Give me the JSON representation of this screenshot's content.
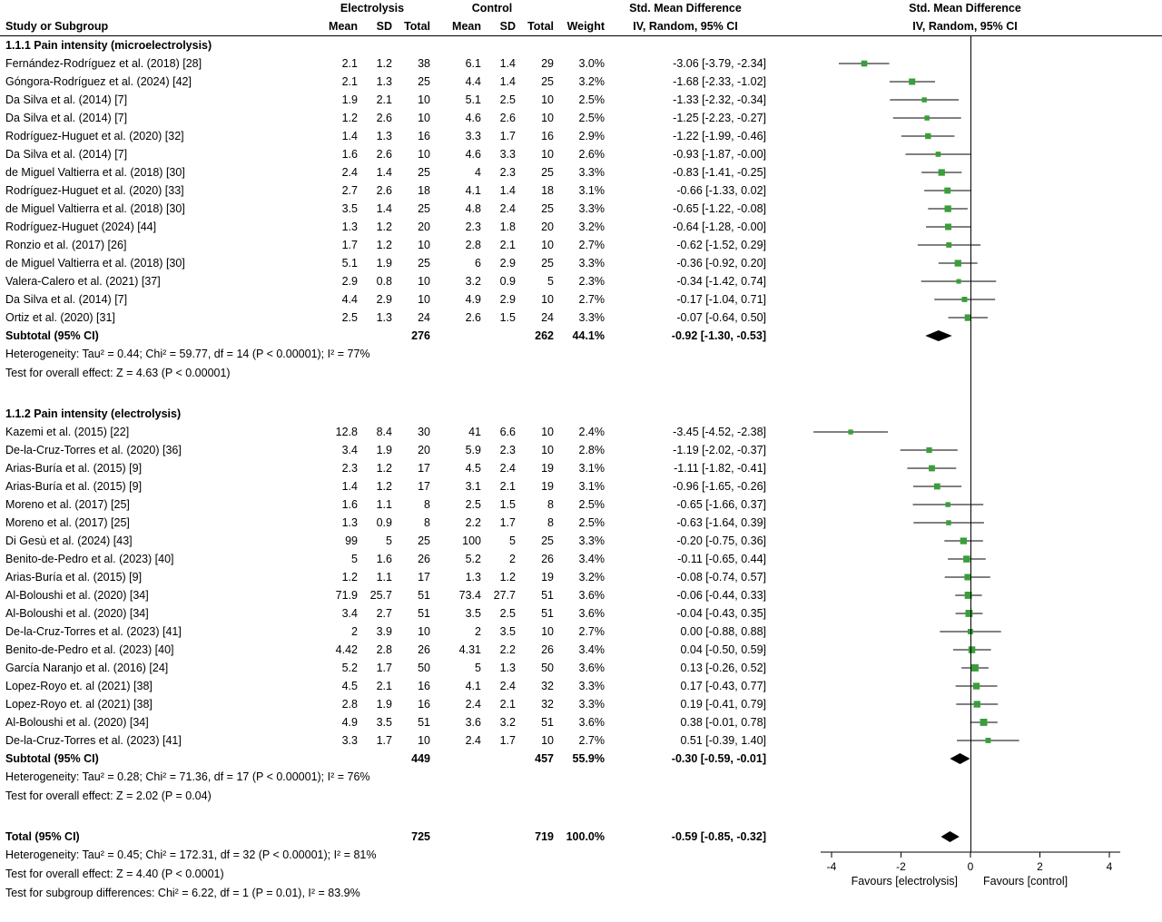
{
  "colors": {
    "marker": "#3a9e3a",
    "diamond": "#000000",
    "line": "#000000"
  },
  "chart_data": {
    "type": "forest",
    "labels": {
      "study_col": "Study or Subgroup",
      "group1": "Electrolysis",
      "group2": "Control",
      "mean": "Mean",
      "sd": "SD",
      "total": "Total",
      "weight": "Weight",
      "smd_title": "Std. Mean Difference",
      "smd_sub": "IV, Random, 95% CI"
    },
    "axis": {
      "ticks": [
        -4,
        -2,
        0,
        2,
        4
      ],
      "favours_left": "Favours [electrolysis]",
      "favours_right": "Favours [control]"
    },
    "sections": [
      {
        "label": "1.1.1 Pain intensity (microelectrolysis)",
        "studies": [
          {
            "name": "Fernández-Rodríguez et al. (2018) [28]",
            "e_mean": "2.1",
            "e_sd": "1.2",
            "e_total": "38",
            "c_mean": "6.1",
            "c_sd": "1.4",
            "c_total": "29",
            "weight": "3.0%",
            "est": -3.06,
            "lo": -3.79,
            "hi": -2.34,
            "ci": "-3.06 [-3.79, -2.34]"
          },
          {
            "name": "Góngora-Rodríguez et al. (2024) [42]",
            "e_mean": "2.1",
            "e_sd": "1.3",
            "e_total": "25",
            "c_mean": "4.4",
            "c_sd": "1.4",
            "c_total": "25",
            "weight": "3.2%",
            "est": -1.68,
            "lo": -2.33,
            "hi": -1.02,
            "ci": "-1.68 [-2.33, -1.02]"
          },
          {
            "name": "Da Silva et al. (2014) [7]",
            "e_mean": "1.9",
            "e_sd": "2.1",
            "e_total": "10",
            "c_mean": "5.1",
            "c_sd": "2.5",
            "c_total": "10",
            "weight": "2.5%",
            "est": -1.33,
            "lo": -2.32,
            "hi": -0.34,
            "ci": "-1.33 [-2.32, -0.34]"
          },
          {
            "name": "Da Silva et al. (2014) [7]",
            "e_mean": "1.2",
            "e_sd": "2.6",
            "e_total": "10",
            "c_mean": "4.6",
            "c_sd": "2.6",
            "c_total": "10",
            "weight": "2.5%",
            "est": -1.25,
            "lo": -2.23,
            "hi": -0.27,
            "ci": "-1.25 [-2.23, -0.27]"
          },
          {
            "name": "Rodríguez-Huguet et al. (2020) [32]",
            "e_mean": "1.4",
            "e_sd": "1.3",
            "e_total": "16",
            "c_mean": "3.3",
            "c_sd": "1.7",
            "c_total": "16",
            "weight": "2.9%",
            "est": -1.22,
            "lo": -1.99,
            "hi": -0.46,
            "ci": "-1.22 [-1.99, -0.46]"
          },
          {
            "name": "Da Silva et al. (2014) [7]",
            "e_mean": "1.6",
            "e_sd": "2.6",
            "e_total": "10",
            "c_mean": "4.6",
            "c_sd": "3.3",
            "c_total": "10",
            "weight": "2.6%",
            "est": -0.93,
            "lo": -1.87,
            "hi": 0,
            "ci": "-0.93 [-1.87, -0.00]"
          },
          {
            "name": "de Miguel Valtierra et al. (2018) [30]",
            "e_mean": "2.4",
            "e_sd": "1.4",
            "e_total": "25",
            "c_mean": "4",
            "c_sd": "2.3",
            "c_total": "25",
            "weight": "3.3%",
            "est": -0.83,
            "lo": -1.41,
            "hi": -0.25,
            "ci": "-0.83 [-1.41, -0.25]"
          },
          {
            "name": "Rodríguez-Huguet et al. (2020) [33]",
            "e_mean": "2.7",
            "e_sd": "2.6",
            "e_total": "18",
            "c_mean": "4.1",
            "c_sd": "1.4",
            "c_total": "18",
            "weight": "3.1%",
            "est": -0.66,
            "lo": -1.33,
            "hi": 0.02,
            "ci": "-0.66 [-1.33, 0.02]"
          },
          {
            "name": "de Miguel Valtierra et al. (2018) [30]",
            "e_mean": "3.5",
            "e_sd": "1.4",
            "e_total": "25",
            "c_mean": "4.8",
            "c_sd": "2.4",
            "c_total": "25",
            "weight": "3.3%",
            "est": -0.65,
            "lo": -1.22,
            "hi": -0.08,
            "ci": "-0.65 [-1.22, -0.08]"
          },
          {
            "name": "Rodríguez-Huguet (2024) [44]",
            "e_mean": "1.3",
            "e_sd": "1.2",
            "e_total": "20",
            "c_mean": "2.3",
            "c_sd": "1.8",
            "c_total": "20",
            "weight": "3.2%",
            "est": -0.64,
            "lo": -1.28,
            "hi": 0,
            "ci": "-0.64 [-1.28, -0.00]"
          },
          {
            "name": "Ronzio et al. (2017) [26]",
            "e_mean": "1.7",
            "e_sd": "1.2",
            "e_total": "10",
            "c_mean": "2.8",
            "c_sd": "2.1",
            "c_total": "10",
            "weight": "2.7%",
            "est": -0.62,
            "lo": -1.52,
            "hi": 0.29,
            "ci": "-0.62 [-1.52, 0.29]"
          },
          {
            "name": "de Miguel Valtierra et al. (2018) [30]",
            "e_mean": "5.1",
            "e_sd": "1.9",
            "e_total": "25",
            "c_mean": "6",
            "c_sd": "2.9",
            "c_total": "25",
            "weight": "3.3%",
            "est": -0.36,
            "lo": -0.92,
            "hi": 0.2,
            "ci": "-0.36 [-0.92, 0.20]"
          },
          {
            "name": "Valera-Calero et al. (2021) [37]",
            "e_mean": "2.9",
            "e_sd": "0.8",
            "e_total": "10",
            "c_mean": "3.2",
            "c_sd": "0.9",
            "c_total": "5",
            "weight": "2.3%",
            "est": -0.34,
            "lo": -1.42,
            "hi": 0.74,
            "ci": "-0.34 [-1.42, 0.74]"
          },
          {
            "name": "Da Silva et al. (2014) [7]",
            "e_mean": "4.4",
            "e_sd": "2.9",
            "e_total": "10",
            "c_mean": "4.9",
            "c_sd": "2.9",
            "c_total": "10",
            "weight": "2.7%",
            "est": -0.17,
            "lo": -1.04,
            "hi": 0.71,
            "ci": "-0.17 [-1.04, 0.71]"
          },
          {
            "name": "Ortiz et al. (2020) [31]",
            "e_mean": "2.5",
            "e_sd": "1.3",
            "e_total": "24",
            "c_mean": "2.6",
            "c_sd": "1.5",
            "c_total": "24",
            "weight": "3.3%",
            "est": -0.07,
            "lo": -0.64,
            "hi": 0.5,
            "ci": "-0.07 [-0.64, 0.50]"
          }
        ],
        "subtotal": {
          "label": "Subtotal (95% CI)",
          "e_total": "276",
          "c_total": "262",
          "weight": "44.1%",
          "est": -0.92,
          "lo": -1.3,
          "hi": -0.53,
          "ci": "-0.92 [-1.30, -0.53]"
        },
        "heterogeneity": "Heterogeneity: Tau² = 0.44; Chi² = 59.77, df = 14 (P < 0.00001); I² = 77%",
        "overall_effect": "Test for overall effect: Z = 4.63 (P < 0.00001)"
      },
      {
        "label": "1.1.2 Pain intensity (electrolysis)",
        "studies": [
          {
            "name": "Kazemi et al. (2015) [22]",
            "e_mean": "12.8",
            "e_sd": "8.4",
            "e_total": "30",
            "c_mean": "41",
            "c_sd": "6.6",
            "c_total": "10",
            "weight": "2.4%",
            "est": -3.45,
            "lo": -4.52,
            "hi": -2.38,
            "ci": "-3.45 [-4.52, -2.38]"
          },
          {
            "name": "De-la-Cruz-Torres et al. (2020) [36]",
            "e_mean": "3.4",
            "e_sd": "1.9",
            "e_total": "20",
            "c_mean": "5.9",
            "c_sd": "2.3",
            "c_total": "10",
            "weight": "2.8%",
            "est": -1.19,
            "lo": -2.02,
            "hi": -0.37,
            "ci": "-1.19 [-2.02, -0.37]"
          },
          {
            "name": "Arias-Buría et al. (2015) [9]",
            "e_mean": "2.3",
            "e_sd": "1.2",
            "e_total": "17",
            "c_mean": "4.5",
            "c_sd": "2.4",
            "c_total": "19",
            "weight": "3.1%",
            "est": -1.11,
            "lo": -1.82,
            "hi": -0.41,
            "ci": "-1.11 [-1.82, -0.41]"
          },
          {
            "name": "Arias-Buría et al. (2015) [9]",
            "e_mean": "1.4",
            "e_sd": "1.2",
            "e_total": "17",
            "c_mean": "3.1",
            "c_sd": "2.1",
            "c_total": "19",
            "weight": "3.1%",
            "est": -0.96,
            "lo": -1.65,
            "hi": -0.26,
            "ci": "-0.96 [-1.65, -0.26]"
          },
          {
            "name": "Moreno et al. (2017) [25]",
            "e_mean": "1.6",
            "e_sd": "1.1",
            "e_total": "8",
            "c_mean": "2.5",
            "c_sd": "1.5",
            "c_total": "8",
            "weight": "2.5%",
            "est": -0.65,
            "lo": -1.66,
            "hi": 0.37,
            "ci": "-0.65 [-1.66, 0.37]"
          },
          {
            "name": "Moreno et al. (2017) [25]",
            "e_mean": "1.3",
            "e_sd": "0.9",
            "e_total": "8",
            "c_mean": "2.2",
            "c_sd": "1.7",
            "c_total": "8",
            "weight": "2.5%",
            "est": -0.63,
            "lo": -1.64,
            "hi": 0.39,
            "ci": "-0.63 [-1.64, 0.39]"
          },
          {
            "name": "Di Gesù et al. (2024) [43]",
            "e_mean": "99",
            "e_sd": "5",
            "e_total": "25",
            "c_mean": "100",
            "c_sd": "5",
            "c_total": "25",
            "weight": "3.3%",
            "est": -0.2,
            "lo": -0.75,
            "hi": 0.36,
            "ci": "-0.20 [-0.75, 0.36]"
          },
          {
            "name": "Benito-de-Pedro et al. (2023) [40]",
            "e_mean": "5",
            "e_sd": "1.6",
            "e_total": "26",
            "c_mean": "5.2",
            "c_sd": "2",
            "c_total": "26",
            "weight": "3.4%",
            "est": -0.11,
            "lo": -0.65,
            "hi": 0.44,
            "ci": "-0.11 [-0.65, 0.44]"
          },
          {
            "name": "Arias-Buría et al. (2015) [9]",
            "e_mean": "1.2",
            "e_sd": "1.1",
            "e_total": "17",
            "c_mean": "1.3",
            "c_sd": "1.2",
            "c_total": "19",
            "weight": "3.2%",
            "est": -0.08,
            "lo": -0.74,
            "hi": 0.57,
            "ci": "-0.08 [-0.74, 0.57]"
          },
          {
            "name": "Al-Boloushi et al. (2020) [34]",
            "e_mean": "71.9",
            "e_sd": "25.7",
            "e_total": "51",
            "c_mean": "73.4",
            "c_sd": "27.7",
            "c_total": "51",
            "weight": "3.6%",
            "est": -0.06,
            "lo": -0.44,
            "hi": 0.33,
            "ci": "-0.06 [-0.44, 0.33]"
          },
          {
            "name": "Al-Boloushi et al. (2020) [34]",
            "e_mean": "3.4",
            "e_sd": "2.7",
            "e_total": "51",
            "c_mean": "3.5",
            "c_sd": "2.5",
            "c_total": "51",
            "weight": "3.6%",
            "est": -0.04,
            "lo": -0.43,
            "hi": 0.35,
            "ci": "-0.04 [-0.43, 0.35]"
          },
          {
            "name": "De-la-Cruz-Torres et al. (2023) [41]",
            "e_mean": "2",
            "e_sd": "3.9",
            "e_total": "10",
            "c_mean": "2",
            "c_sd": "3.5",
            "c_total": "10",
            "weight": "2.7%",
            "est": 0.0,
            "lo": -0.88,
            "hi": 0.88,
            "ci": "0.00 [-0.88, 0.88]"
          },
          {
            "name": "Benito-de-Pedro et al. (2023) [40]",
            "e_mean": "4.42",
            "e_sd": "2.8",
            "e_total": "26",
            "c_mean": "4.31",
            "c_sd": "2.2",
            "c_total": "26",
            "weight": "3.4%",
            "est": 0.04,
            "lo": -0.5,
            "hi": 0.59,
            "ci": "0.04 [-0.50, 0.59]"
          },
          {
            "name": "García Naranjo et al. (2016) [24]",
            "e_mean": "5.2",
            "e_sd": "1.7",
            "e_total": "50",
            "c_mean": "5",
            "c_sd": "1.3",
            "c_total": "50",
            "weight": "3.6%",
            "est": 0.13,
            "lo": -0.26,
            "hi": 0.52,
            "ci": "0.13 [-0.26, 0.52]"
          },
          {
            "name": "Lopez-Royo et. al (2021) [38]",
            "e_mean": "4.5",
            "e_sd": "2.1",
            "e_total": "16",
            "c_mean": "4.1",
            "c_sd": "2.4",
            "c_total": "32",
            "weight": "3.3%",
            "est": 0.17,
            "lo": -0.43,
            "hi": 0.77,
            "ci": "0.17 [-0.43, 0.77]"
          },
          {
            "name": "Lopez-Royo et. al (2021) [38]",
            "e_mean": "2.8",
            "e_sd": "1.9",
            "e_total": "16",
            "c_mean": "2.4",
            "c_sd": "2.1",
            "c_total": "32",
            "weight": "3.3%",
            "est": 0.19,
            "lo": -0.41,
            "hi": 0.79,
            "ci": "0.19 [-0.41, 0.79]"
          },
          {
            "name": "Al-Boloushi et al. (2020) [34]",
            "e_mean": "4.9",
            "e_sd": "3.5",
            "e_total": "51",
            "c_mean": "3.6",
            "c_sd": "3.2",
            "c_total": "51",
            "weight": "3.6%",
            "est": 0.38,
            "lo": -0.01,
            "hi": 0.78,
            "ci": "0.38 [-0.01, 0.78]"
          },
          {
            "name": "De-la-Cruz-Torres et al. (2023) [41]",
            "e_mean": "3.3",
            "e_sd": "1.7",
            "e_total": "10",
            "c_mean": "2.4",
            "c_sd": "1.7",
            "c_total": "10",
            "weight": "2.7%",
            "est": 0.51,
            "lo": -0.39,
            "hi": 1.4,
            "ci": "0.51 [-0.39, 1.40]"
          }
        ],
        "subtotal": {
          "label": "Subtotal (95% CI)",
          "e_total": "449",
          "c_total": "457",
          "weight": "55.9%",
          "est": -0.3,
          "lo": -0.59,
          "hi": -0.01,
          "ci": "-0.30 [-0.59, -0.01]"
        },
        "heterogeneity": "Heterogeneity: Tau² = 0.28; Chi² = 71.36, df = 17 (P < 0.00001); I² = 76%",
        "overall_effect": "Test for overall effect: Z = 2.02 (P = 0.04)"
      }
    ],
    "total": {
      "label": "Total (95% CI)",
      "e_total": "725",
      "c_total": "719",
      "weight": "100.0%",
      "est": -0.59,
      "lo": -0.85,
      "hi": -0.32,
      "ci": "-0.59 [-0.85, -0.32]"
    },
    "total_heterogeneity": "Heterogeneity: Tau² = 0.45; Chi² = 172.31, df = 32 (P < 0.00001); I² = 81%",
    "total_overall_effect": "Test for overall effect: Z = 4.40 (P < 0.0001)",
    "subgroup_differences": "Test for subgroup differences: Chi² = 6.22, df = 1 (P = 0.01), I² = 83.9%"
  }
}
